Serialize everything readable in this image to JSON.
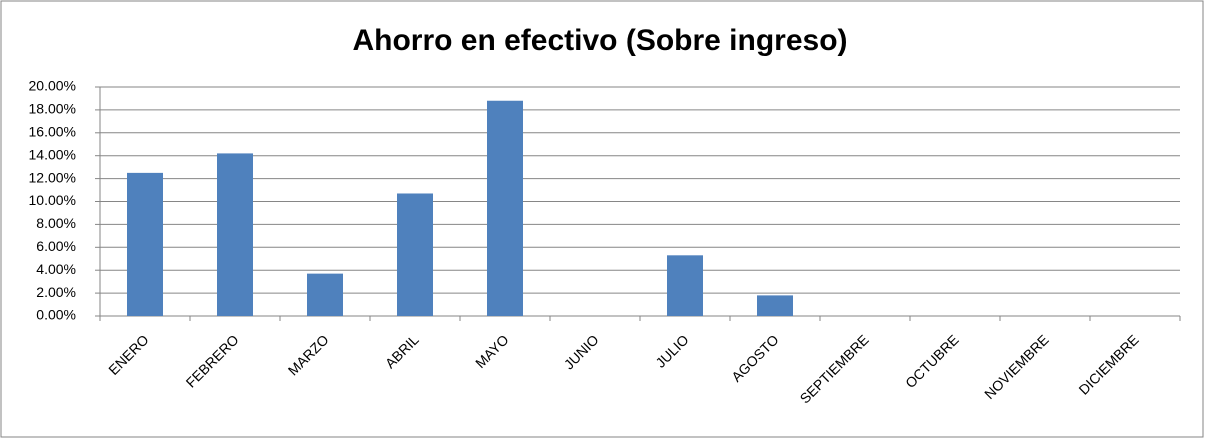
{
  "chart_data": {
    "type": "bar",
    "title": "Ahorro en efectivo (Sobre ingreso)",
    "categories": [
      "ENERO",
      "FEBRERO",
      "MARZO",
      "ABRIL",
      "MAYO",
      "JUNIO",
      "JULIO",
      "AGOSTO",
      "SEPTIEMBRE",
      "OCTUBRE",
      "NOVIEMBRE",
      "DICIEMBRE"
    ],
    "values": [
      12.5,
      14.2,
      3.7,
      10.7,
      18.8,
      null,
      5.3,
      1.8,
      null,
      null,
      null,
      null
    ],
    "color": "#4f81bd",
    "ylim": [
      0,
      20
    ],
    "yticks": [
      {
        "value": 0,
        "label": "0.00%"
      },
      {
        "value": 2,
        "label": "2.00%"
      },
      {
        "value": 4,
        "label": "4.00%"
      },
      {
        "value": 6,
        "label": "6.00%"
      },
      {
        "value": 8,
        "label": "8.00%"
      },
      {
        "value": 10,
        "label": "10.00%"
      },
      {
        "value": 12,
        "label": "12.00%"
      },
      {
        "value": 14,
        "label": "14.00%"
      },
      {
        "value": 16,
        "label": "16.00%"
      },
      {
        "value": 18,
        "label": "18.00%"
      },
      {
        "value": 20,
        "label": "20.00%"
      }
    ],
    "grid": true
  }
}
